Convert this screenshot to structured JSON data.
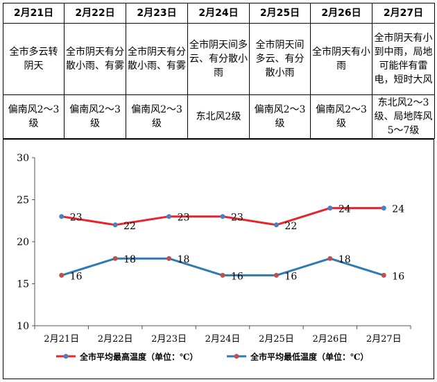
{
  "forecast": {
    "dates": [
      "2月21日",
      "2月22日",
      "2月23日",
      "2月24日",
      "2月25日",
      "2月26日",
      "2月27日"
    ],
    "weather": [
      "全市多云转阴天",
      "全市阴天有分散小雨、有雾",
      "全市阴天有分散小雨、有雾",
      "全市阴天间多云、有分散小雨",
      "全市阴天间多云、有分散小雨",
      "全市阴天有小雨",
      "全市阴天有小到中雨，局地可能伴有雷电，短时大风"
    ],
    "wind": [
      "偏南风2～3级",
      "偏南风2～3级",
      "偏南风2～3级",
      "东北风2级",
      "偏南风2～3级",
      "偏南风2～3级",
      "东北风2～3级、局地阵风5～7级"
    ]
  },
  "chart_data": {
    "type": "line",
    "categories": [
      "2月21日",
      "2月22日",
      "2月23日",
      "2月24日",
      "2月25日",
      "2月26日",
      "2月27日"
    ],
    "series": [
      {
        "name": "全市平均最高温度（单位：℃）",
        "values": [
          23,
          22,
          23,
          23,
          22,
          24,
          24
        ],
        "color": "#e8232a",
        "marker": "#4a7fc1"
      },
      {
        "name": "全市平均最低温度（单位：℃）",
        "values": [
          16,
          18,
          18,
          16,
          16,
          18,
          16
        ],
        "color": "#2e7ab3",
        "marker": "#c0504d"
      }
    ],
    "ylim": [
      10,
      30
    ],
    "yticks": [
      "10",
      "15",
      "20",
      "25",
      "30"
    ],
    "ytick_values": [
      10,
      15,
      20,
      25,
      30
    ],
    "legend": "bottom",
    "grid": false
  }
}
